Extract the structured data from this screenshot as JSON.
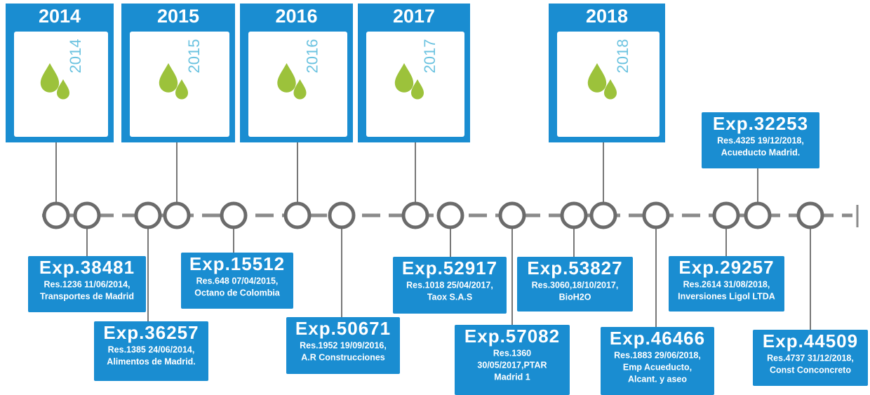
{
  "years": [
    {
      "label": "2014"
    },
    {
      "label": "2015"
    },
    {
      "label": "2016"
    },
    {
      "label": "2017"
    },
    {
      "label": "2018"
    }
  ],
  "records": [
    {
      "title": "Exp.38481",
      "lines": [
        "Res.1236 11/06/2014,",
        "Transportes de Madrid"
      ]
    },
    {
      "title": "Exp.36257",
      "lines": [
        "Res.1385 24/06/2014,",
        "Alimentos de Madrid."
      ]
    },
    {
      "title": "Exp.15512",
      "lines": [
        "Res.648 07/04/2015,",
        "Octano de Colombia"
      ]
    },
    {
      "title": "Exp.50671",
      "lines": [
        "Res.1952 19/09/2016,",
        "A.R Construcciones"
      ]
    },
    {
      "title": "Exp.52917",
      "lines": [
        "Res.1018 25/04/2017,",
        "Taox S.A.S"
      ]
    },
    {
      "title": "Exp.57082",
      "lines": [
        "Res.1360",
        "30/05/2017,PTAR",
        "Madrid 1"
      ]
    },
    {
      "title": "Exp.53827",
      "lines": [
        "Res.3060,18/10/2017,",
        "BioH2O"
      ]
    },
    {
      "title": "Exp.46466",
      "lines": [
        "Res.1883 29/06/2018,",
        "Emp Acueducto,",
        "Alcant. y aseo"
      ]
    },
    {
      "title": "Exp.29257",
      "lines": [
        "Res.2614 31/08/2018,",
        "Inversiones Ligol LTDA"
      ]
    },
    {
      "title": "Exp.32253",
      "lines": [
        "Res.4325 19/12/2018,",
        "Acueducto Madrid."
      ]
    },
    {
      "title": "Exp.44509",
      "lines": [
        "Res.4737 31/12/2018,",
        "Const Conconcreto"
      ]
    }
  ]
}
